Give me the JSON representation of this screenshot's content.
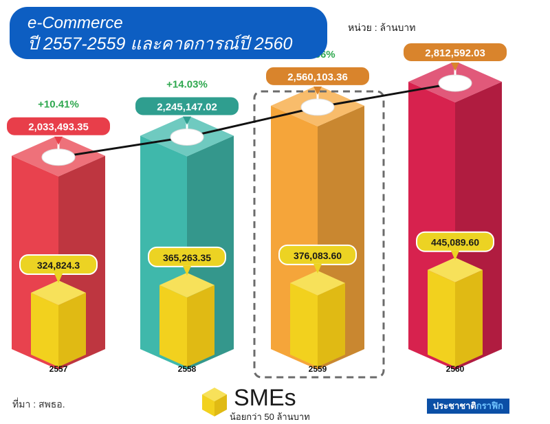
{
  "header": {
    "title_line1": "e-Commerce",
    "title_line2": "ปี 2557-2559 และคาดการณ์ปี 2560",
    "unit": "หน่วย : ล้านบาท"
  },
  "footer": {
    "source": "ที่มา : สพธอ.",
    "brand_main": "ประชาชาติ",
    "brand_accent": "กราฟิก"
  },
  "legend": {
    "label": "SMEs",
    "sub": "น้อยกว่า 50 ล้านบาท"
  },
  "chart_data": {
    "type": "bar",
    "categories": [
      "2557",
      "2558",
      "2559",
      "2560"
    ],
    "series": [
      {
        "name": "",
        "values": [
          2033493.35,
          2245147.02,
          2560103.36,
          2812592.03
        ],
        "labels": [
          "2,033,493.35",
          "2,245,147.02",
          "2,560,103.36",
          "2,812,592.03"
        ]
      },
      {
        "name": "SMEs",
        "values": [
          324824.3,
          365263.35,
          376083.6,
          445089.6
        ],
        "labels": [
          "324,824.3",
          "365,263.35",
          "376,083.60",
          "445,089.60"
        ]
      }
    ],
    "growth_labels": [
      "+10.41%",
      "+14.03%",
      "+9.86%"
    ],
    "highlighted_category": "2559",
    "colors": {
      "bars": [
        "#e8424e",
        "#3fb8ab",
        "#f5a53a",
        "#d7224e"
      ],
      "callouts": [
        "#e83e4a",
        "#2f9e8f",
        "#d9842c",
        "#d9842c"
      ],
      "sme": "#f2d11e",
      "sme_callout": "#ecd323",
      "growth": "#2fa84f",
      "title_bg": "#0d5ec2"
    }
  }
}
